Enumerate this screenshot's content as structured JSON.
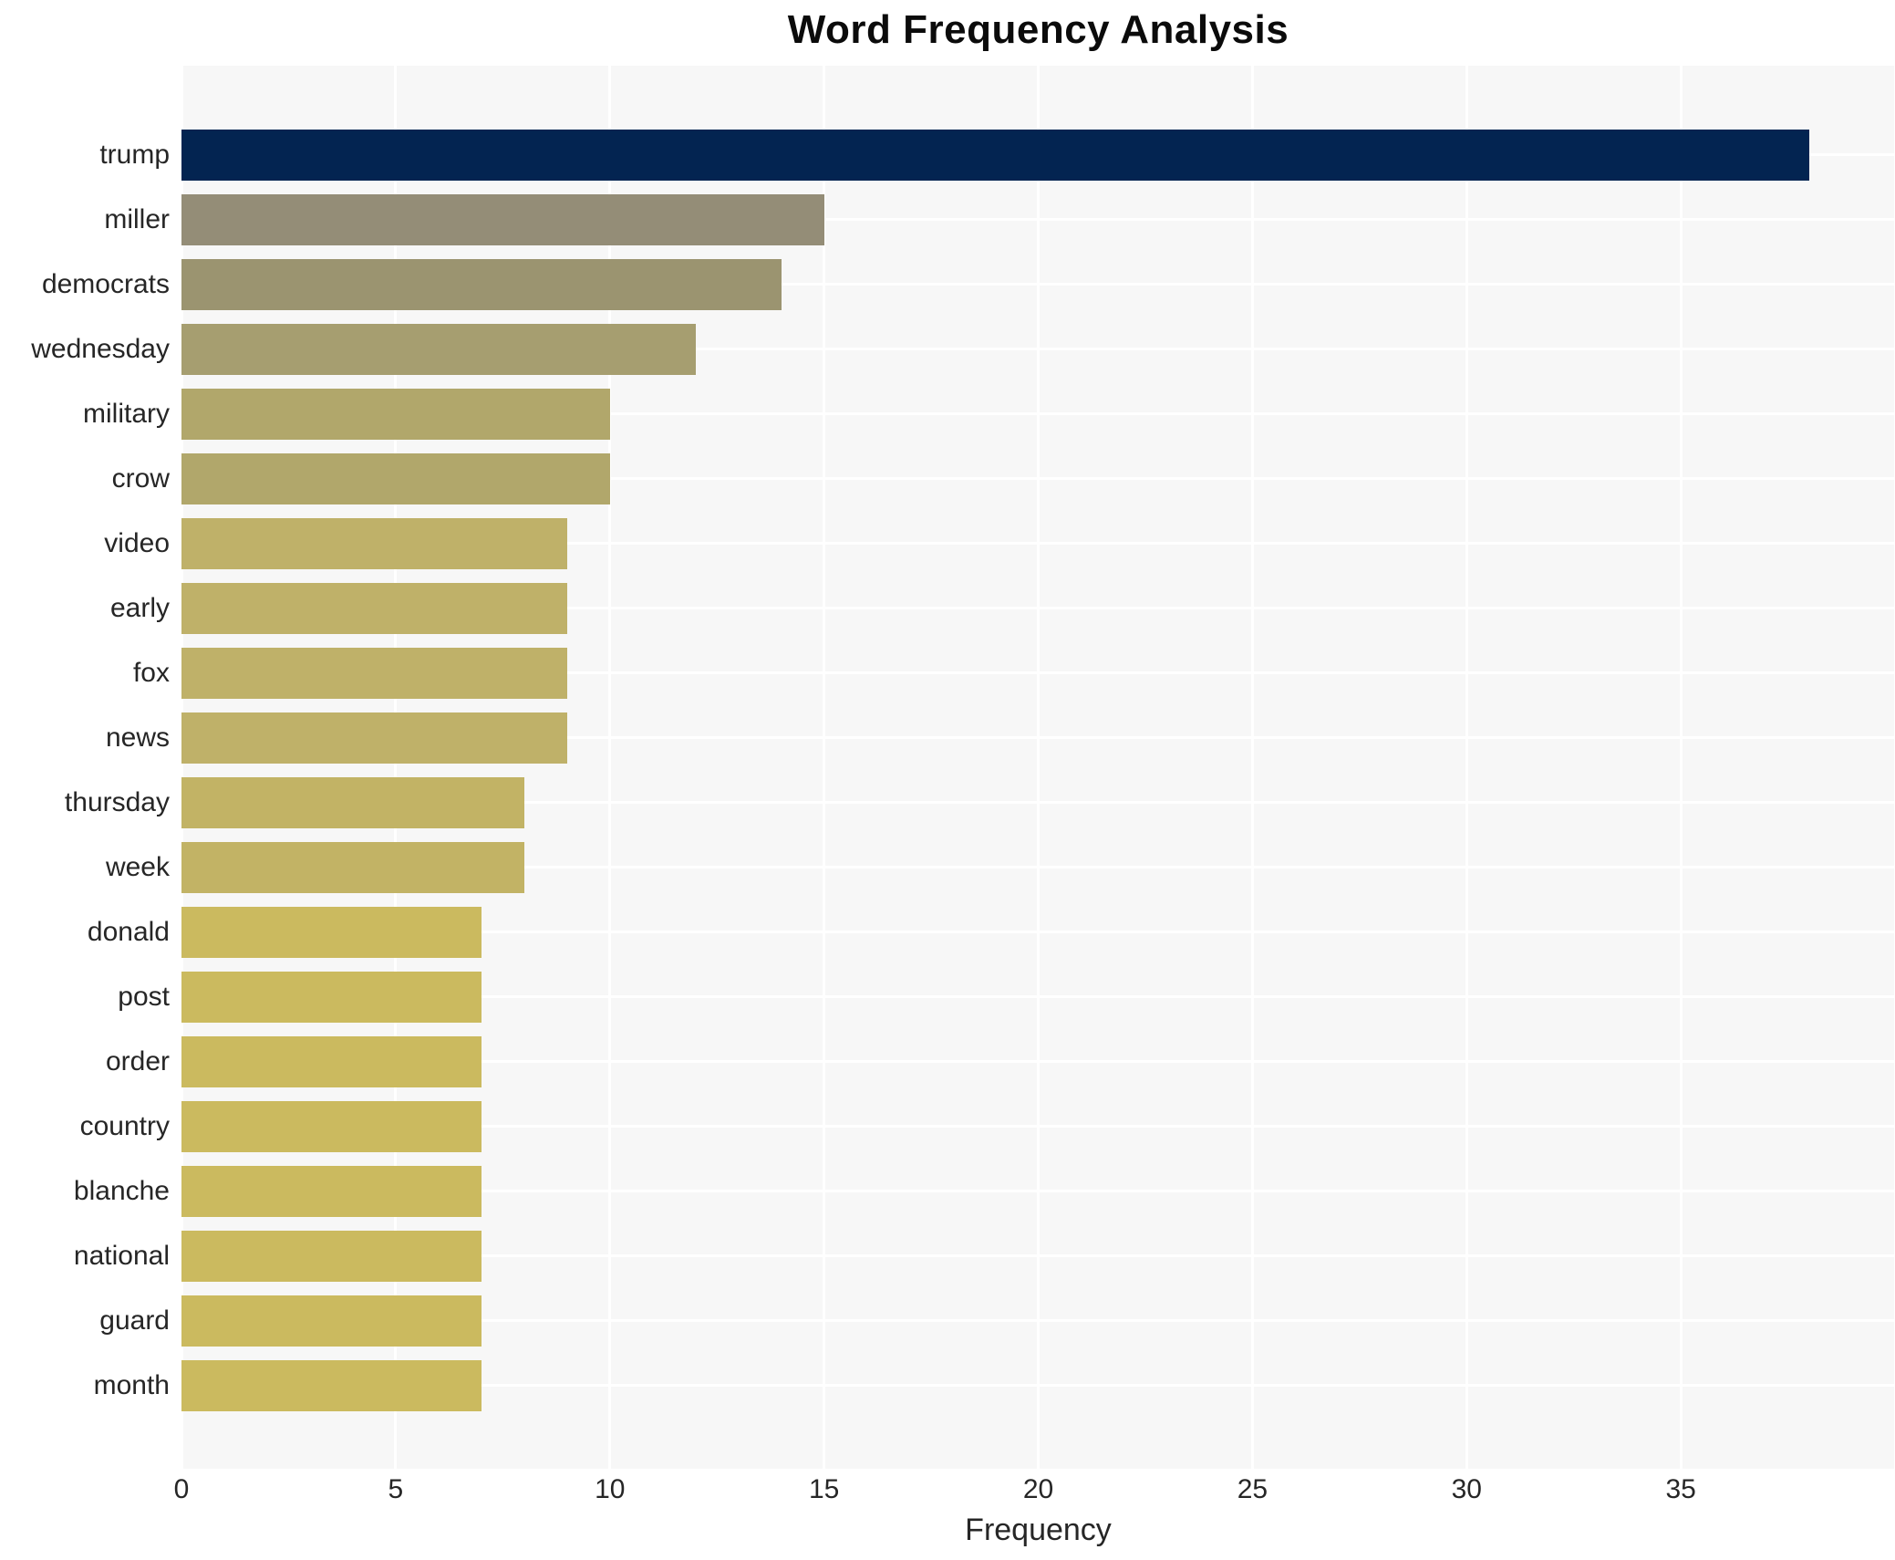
{
  "title": "Word Frequency Analysis",
  "chart_data": {
    "type": "bar",
    "orientation": "horizontal",
    "title": "Word Frequency Analysis",
    "xlabel": "Frequency",
    "ylabel": "",
    "categories": [
      "trump",
      "miller",
      "democrats",
      "wednesday",
      "military",
      "crow",
      "video",
      "early",
      "fox",
      "news",
      "thursday",
      "week",
      "donald",
      "post",
      "order",
      "country",
      "blanche",
      "national",
      "guard",
      "month"
    ],
    "values": [
      38,
      15,
      14,
      12,
      10,
      10,
      9,
      9,
      9,
      9,
      8,
      8,
      7,
      7,
      7,
      7,
      7,
      7,
      7,
      7
    ],
    "bar_colors": [
      "#032451",
      "#948d77",
      "#9b9470",
      "#a69e70",
      "#b1a76b",
      "#b1a76b",
      "#bfb169",
      "#bfb169",
      "#bfb169",
      "#bfb169",
      "#c2b365",
      "#c2b365",
      "#cbba5f",
      "#cbba5f",
      "#cbba5f",
      "#cbba5f",
      "#cbba5f",
      "#cbba5f",
      "#cbba5f",
      "#cbba5f"
    ],
    "xlim": [
      0,
      40
    ],
    "xticks": [
      0,
      5,
      10,
      15,
      20,
      25,
      30,
      35
    ],
    "grid": true,
    "legend": "none",
    "panel_bg": "#f7f7f7",
    "grid_color": "#ffffff",
    "tick_label_color": "#262626",
    "title_color": "#0b0b0b"
  }
}
